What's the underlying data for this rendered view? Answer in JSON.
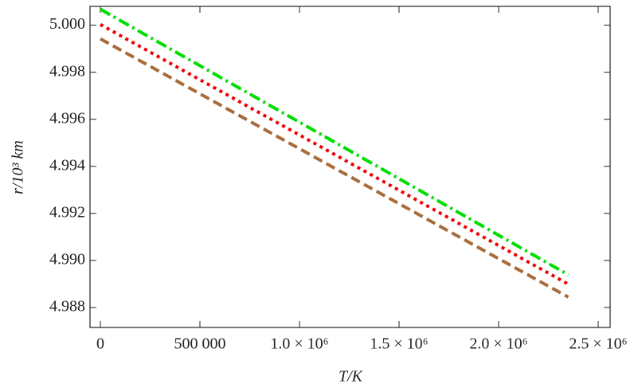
{
  "chart_data": {
    "type": "line",
    "x_label": "T/K",
    "y_label": "r/10³ km",
    "x": [
      0,
      2350000
    ],
    "series": [
      {
        "color": "#00dd00",
        "style": "dashdot",
        "values": [
          5.00068,
          4.98939
        ]
      },
      {
        "color": "#ee0000",
        "style": "dotted",
        "values": [
          5.00003,
          4.98899
        ]
      },
      {
        "color": "#a86b3a",
        "style": "dashed",
        "values": [
          4.99942,
          4.98844
        ]
      }
    ],
    "xlim": [
      -52000,
      2560000
    ],
    "xticks": [
      0,
      {
        "value": 500000,
        "label": "500 000"
      },
      {
        "value": 1000000,
        "label": "1.0 × 10⁶"
      },
      {
        "value": 1500000,
        "label": "1.5 × 10⁶"
      },
      {
        "value": 2000000,
        "label": "2.0 × 10⁶"
      },
      {
        "value": 2500000,
        "label": "2.5 × 10⁶"
      }
    ],
    "ylim": [
      4.98715,
      5.0008
    ],
    "yticks": [
      4.988,
      {
        "value": 4.99,
        "label": "4.990"
      },
      4.992,
      4.994,
      4.996,
      4.998,
      {
        "value": 5,
        "label": "5.000"
      }
    ],
    "grid": false
  }
}
